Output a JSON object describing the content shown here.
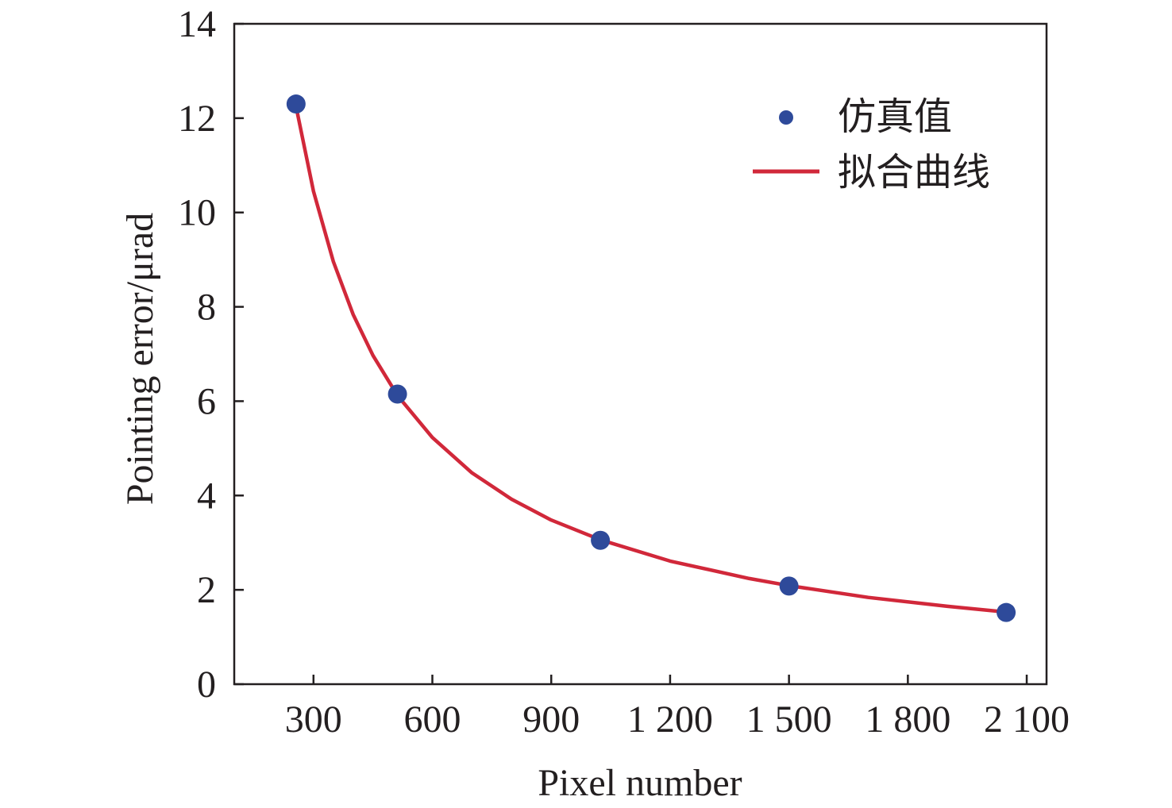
{
  "chart_data": {
    "type": "scatter",
    "title": "",
    "xlabel": "Pixel number",
    "ylabel": "Pointing error/μrad",
    "xlim": [
      100,
      2150
    ],
    "ylim": [
      0,
      14
    ],
    "xticks": [
      300,
      600,
      900,
      1200,
      1500,
      1800,
      2100
    ],
    "xtick_labels": [
      "300",
      "600",
      "900",
      "1 200",
      "1 500",
      "1 800",
      "2 100"
    ],
    "yticks": [
      0,
      2,
      4,
      6,
      8,
      10,
      12,
      14
    ],
    "ytick_labels": [
      "0",
      "2",
      "4",
      "6",
      "8",
      "10",
      "12",
      "14"
    ],
    "grid": false,
    "legend_position": "top-right",
    "series": [
      {
        "name": "仿真值",
        "kind": "scatter",
        "color": "#2e4a9a",
        "x": [
          256,
          512,
          1024,
          1500,
          2048
        ],
        "y": [
          12.3,
          6.15,
          3.05,
          2.08,
          1.52
        ]
      },
      {
        "name": "拟合曲线",
        "kind": "line",
        "color": "#d1283a",
        "x": [
          256,
          300,
          350,
          400,
          450,
          512,
          600,
          700,
          800,
          900,
          1024,
          1200,
          1400,
          1500,
          1700,
          1900,
          2048
        ],
        "y": [
          12.25,
          10.45,
          8.96,
          7.84,
          6.97,
          6.12,
          5.23,
          4.48,
          3.92,
          3.48,
          3.06,
          2.61,
          2.24,
          2.09,
          1.84,
          1.65,
          1.53
        ]
      }
    ]
  }
}
